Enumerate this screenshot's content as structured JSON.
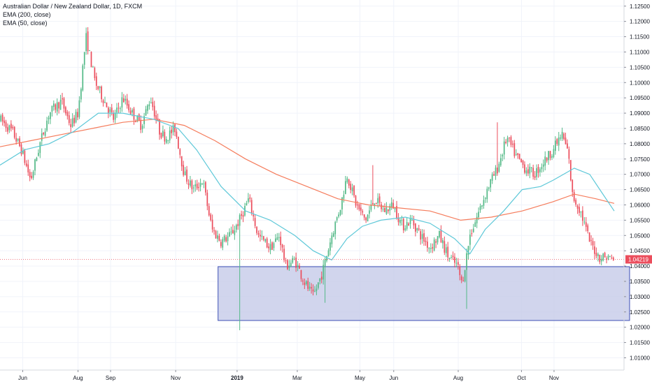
{
  "legend": {
    "title": "Australian Dollar / New Zealand Dollar, 1D, FXCM",
    "ema200": "EMA (200, close)",
    "ema50": "EMA (50, close)"
  },
  "colors": {
    "up": "#53b987",
    "down": "#eb4d5c",
    "ema200": "#f57c5c",
    "ema50": "#5ec8d8",
    "zone_fill": "#c5cae9",
    "zone_stroke": "#3f51b5",
    "price_line": "#eb4d5c",
    "grid": "#f0f3fa"
  },
  "chart_data": {
    "type": "candlestick",
    "title": "Australian Dollar / New Zealand Dollar, 1D, FXCM",
    "y_ticks": [
      1.125,
      1.12,
      1.115,
      1.11,
      1.105,
      1.1,
      1.095,
      1.09,
      1.085,
      1.08,
      1.075,
      1.07,
      1.065,
      1.06,
      1.055,
      1.05,
      1.045,
      1.04,
      1.035,
      1.03,
      1.025,
      1.02,
      1.015,
      1.01
    ],
    "y_tick_labels": [
      "1.12500",
      "1.12000",
      "1.11500",
      "1.11000",
      "1.10500",
      "1.10000",
      "1.09500",
      "1.09000",
      "1.08500",
      "1.08000",
      "1.07500",
      "1.07000",
      "1.06500",
      "1.06000",
      "1.05500",
      "1.05000",
      "1.04500",
      "1.04000",
      "1.03500",
      "1.03000",
      "1.02500",
      "1.02000",
      "1.01500",
      "1.01000"
    ],
    "ylim": [
      1.006,
      1.127
    ],
    "x_ticks": [
      {
        "label": "Jun",
        "pos": 0.037,
        "bold": false
      },
      {
        "label": "Aug",
        "pos": 0.127,
        "bold": false
      },
      {
        "label": "Sep",
        "pos": 0.18,
        "bold": false
      },
      {
        "label": "Nov",
        "pos": 0.286,
        "bold": false
      },
      {
        "label": "2019",
        "pos": 0.386,
        "bold": true
      },
      {
        "label": "Mar",
        "pos": 0.484,
        "bold": false
      },
      {
        "label": "May",
        "pos": 0.586,
        "bold": false
      },
      {
        "label": "Jun",
        "pos": 0.641,
        "bold": false
      },
      {
        "label": "Aug",
        "pos": 0.746,
        "bold": false
      },
      {
        "label": "Oct",
        "pos": 0.849,
        "bold": false
      },
      {
        "label": "Nov",
        "pos": 0.902,
        "bold": false
      }
    ],
    "close_path": [
      [
        0.0,
        1.088
      ],
      [
        0.02,
        1.084
      ],
      [
        0.035,
        1.078
      ],
      [
        0.05,
        1.068
      ],
      [
        0.065,
        1.08
      ],
      [
        0.08,
        1.09
      ],
      [
        0.1,
        1.094
      ],
      [
        0.115,
        1.086
      ],
      [
        0.127,
        1.09
      ],
      [
        0.14,
        1.115
      ],
      [
        0.155,
        1.1
      ],
      [
        0.17,
        1.094
      ],
      [
        0.185,
        1.088
      ],
      [
        0.2,
        1.095
      ],
      [
        0.215,
        1.09
      ],
      [
        0.23,
        1.086
      ],
      [
        0.245,
        1.095
      ],
      [
        0.26,
        1.084
      ],
      [
        0.27,
        1.082
      ],
      [
        0.285,
        1.085
      ],
      [
        0.3,
        1.07
      ],
      [
        0.315,
        1.065
      ],
      [
        0.33,
        1.068
      ],
      [
        0.345,
        1.052
      ],
      [
        0.36,
        1.048
      ],
      [
        0.375,
        1.05
      ],
      [
        0.39,
        1.055
      ],
      [
        0.405,
        1.062
      ],
      [
        0.42,
        1.05
      ],
      [
        0.44,
        1.046
      ],
      [
        0.455,
        1.05
      ],
      [
        0.465,
        1.04
      ],
      [
        0.48,
        1.042
      ],
      [
        0.495,
        1.035
      ],
      [
        0.51,
        1.03
      ],
      [
        0.525,
        1.038
      ],
      [
        0.54,
        1.05
      ],
      [
        0.555,
        1.06
      ],
      [
        0.565,
        1.07
      ],
      [
        0.58,
        1.06
      ],
      [
        0.595,
        1.055
      ],
      [
        0.61,
        1.062
      ],
      [
        0.625,
        1.058
      ],
      [
        0.64,
        1.06
      ],
      [
        0.655,
        1.053
      ],
      [
        0.67,
        1.055
      ],
      [
        0.685,
        1.05
      ],
      [
        0.7,
        1.046
      ],
      [
        0.715,
        1.05
      ],
      [
        0.73,
        1.043
      ],
      [
        0.745,
        1.04
      ],
      [
        0.752,
        1.034
      ],
      [
        0.765,
        1.05
      ],
      [
        0.78,
        1.058
      ],
      [
        0.795,
        1.066
      ],
      [
        0.81,
        1.072
      ],
      [
        0.825,
        1.082
      ],
      [
        0.84,
        1.076
      ],
      [
        0.855,
        1.072
      ],
      [
        0.87,
        1.07
      ],
      [
        0.885,
        1.074
      ],
      [
        0.9,
        1.078
      ],
      [
        0.915,
        1.083
      ],
      [
        0.925,
        1.077
      ],
      [
        0.932,
        1.063
      ],
      [
        0.945,
        1.058
      ],
      [
        0.96,
        1.048
      ],
      [
        0.975,
        1.043
      ],
      [
        0.99,
        1.043
      ],
      [
        1.0,
        1.042
      ]
    ],
    "high_spikes": [
      [
        0.141,
        1.118
      ],
      [
        0.81,
        1.087
      ],
      [
        0.606,
        1.073
      ]
    ],
    "low_spikes": [
      [
        0.391,
        1.019
      ],
      [
        0.759,
        1.026
      ],
      [
        0.528,
        1.028
      ]
    ],
    "ema200": [
      [
        0.0,
        1.079
      ],
      [
        0.05,
        1.081
      ],
      [
        0.1,
        1.083
      ],
      [
        0.15,
        1.085
      ],
      [
        0.2,
        1.087
      ],
      [
        0.25,
        1.088
      ],
      [
        0.3,
        1.086
      ],
      [
        0.35,
        1.081
      ],
      [
        0.4,
        1.075
      ],
      [
        0.45,
        1.07
      ],
      [
        0.5,
        1.066
      ],
      [
        0.55,
        1.062
      ],
      [
        0.6,
        1.06
      ],
      [
        0.65,
        1.059
      ],
      [
        0.7,
        1.058
      ],
      [
        0.75,
        1.055
      ],
      [
        0.8,
        1.056
      ],
      [
        0.85,
        1.058
      ],
      [
        0.9,
        1.061
      ],
      [
        0.935,
        1.0635
      ],
      [
        0.97,
        1.062
      ],
      [
        1.0,
        1.0605
      ]
    ],
    "ema50": [
      [
        0.0,
        1.073
      ],
      [
        0.04,
        1.078
      ],
      [
        0.08,
        1.08
      ],
      [
        0.12,
        1.084
      ],
      [
        0.16,
        1.09
      ],
      [
        0.2,
        1.09
      ],
      [
        0.25,
        1.088
      ],
      [
        0.29,
        1.085
      ],
      [
        0.32,
        1.078
      ],
      [
        0.36,
        1.066
      ],
      [
        0.4,
        1.058
      ],
      [
        0.44,
        1.055
      ],
      [
        0.48,
        1.05
      ],
      [
        0.51,
        1.045
      ],
      [
        0.54,
        1.042
      ],
      [
        0.565,
        1.049
      ],
      [
        0.59,
        1.053
      ],
      [
        0.62,
        1.055
      ],
      [
        0.66,
        1.056
      ],
      [
        0.7,
        1.054
      ],
      [
        0.74,
        1.049
      ],
      [
        0.765,
        1.044
      ],
      [
        0.79,
        1.052
      ],
      [
        0.82,
        1.058
      ],
      [
        0.85,
        1.065
      ],
      [
        0.88,
        1.066
      ],
      [
        0.9,
        1.068
      ],
      [
        0.935,
        1.072
      ],
      [
        0.96,
        1.07
      ],
      [
        0.98,
        1.064
      ],
      [
        1.0,
        1.058
      ]
    ],
    "support_zone": {
      "x_start": 0.355,
      "x_end": 1.025,
      "y_top": 1.0398,
      "y_bottom": 1.0222
    },
    "current_price": 1.04219,
    "current_price_label": "1.04219"
  }
}
